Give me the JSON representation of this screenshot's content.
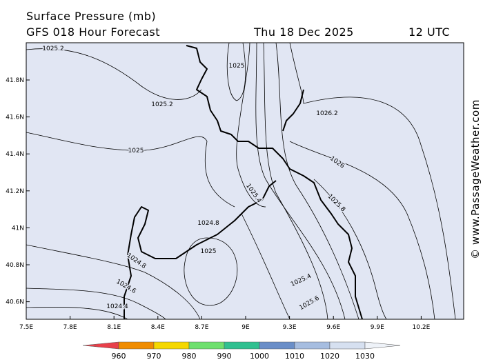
{
  "header": {
    "title": "Surface Pressure (mb)",
    "subtitle": "GFS 018 Hour Forecast",
    "date": "Thu 18 Dec 2025",
    "time": "12 UTC"
  },
  "map": {
    "longitude_ticks": [
      "7.5E",
      "7.8E",
      "8.1E",
      "8.4E",
      "8.7E",
      "9E",
      "9.3E",
      "9.6E",
      "9.9E",
      "10.2E"
    ],
    "latitude_ticks": [
      "41.8N",
      "41.6N",
      "41.4N",
      "41.2N",
      "41N",
      "40.8N",
      "40.6N"
    ],
    "contour_labels": [
      "1025.2",
      "1025",
      "1025.2",
      "1026.2",
      "1025",
      "1026",
      "1025.4",
      "1025.8",
      "1024.8",
      "1025",
      "1024.8",
      "1024.6",
      "1024.4",
      "1025.4",
      "1025.6"
    ]
  },
  "colorbar": {
    "labels": [
      960,
      970,
      980,
      990,
      1000,
      1010,
      1020,
      1030
    ]
  },
  "watermark": "© www.PassageWeather.com"
}
